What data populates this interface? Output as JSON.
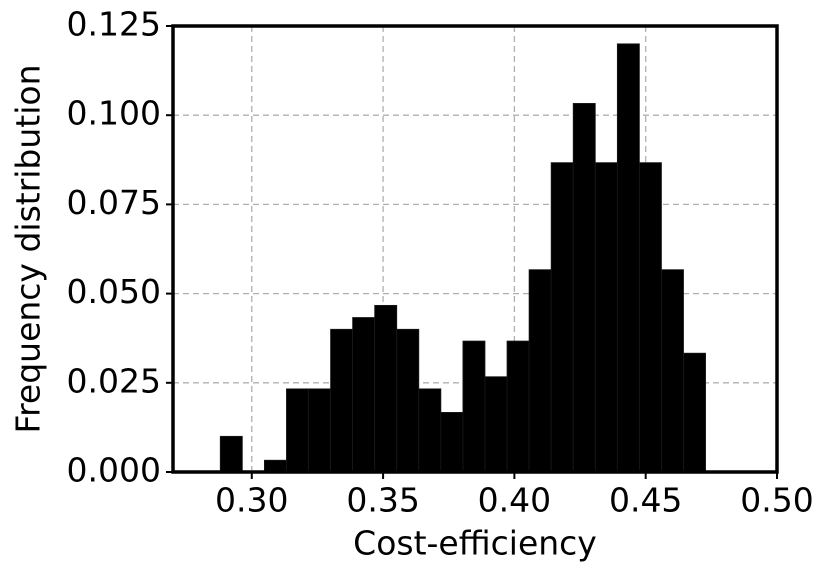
{
  "chart_data": {
    "type": "histogram",
    "xlabel": "Cost-efficiency",
    "ylabel": "Frequency distribution",
    "bins": [
      0.288,
      0.2964,
      0.3048,
      0.3132,
      0.3216,
      0.33,
      0.3384,
      0.3468,
      0.3552,
      0.3636,
      0.372,
      0.3804,
      0.3888,
      0.3972,
      0.4056,
      0.414,
      0.4224,
      0.4308,
      0.4392,
      0.4476,
      0.456,
      0.4644,
      0.4728
    ],
    "values": [
      0.01,
      0,
      0.0033,
      0.0233,
      0.0233,
      0.04,
      0.0433,
      0.0467,
      0.04,
      0.0233,
      0.0167,
      0.0367,
      0.0267,
      0.0367,
      0.0567,
      0.0867,
      0.1033,
      0.0867,
      0.12,
      0.0867,
      0.0567,
      0.0333
    ],
    "color": "#000000",
    "xlim": [
      0.27,
      0.5
    ],
    "xticks": [
      {
        "value": 0.3,
        "label": "0.30"
      },
      {
        "value": 0.35,
        "label": "0.35"
      },
      {
        "value": 0.4,
        "label": "0.40"
      },
      {
        "value": 0.45,
        "label": "0.45"
      },
      {
        "value": 0.5,
        "label": "0.50"
      }
    ],
    "ylim": [
      0,
      0.125
    ],
    "yticks": [
      {
        "value": 0,
        "label": "0.000"
      },
      {
        "value": 0.025,
        "label": "0.025"
      },
      {
        "value": 0.05,
        "label": "0.050"
      },
      {
        "value": 0.075,
        "label": "0.075"
      },
      {
        "value": 0.1,
        "label": "0.100"
      },
      {
        "value": 0.125,
        "label": "0.125"
      }
    ],
    "grid": true
  }
}
